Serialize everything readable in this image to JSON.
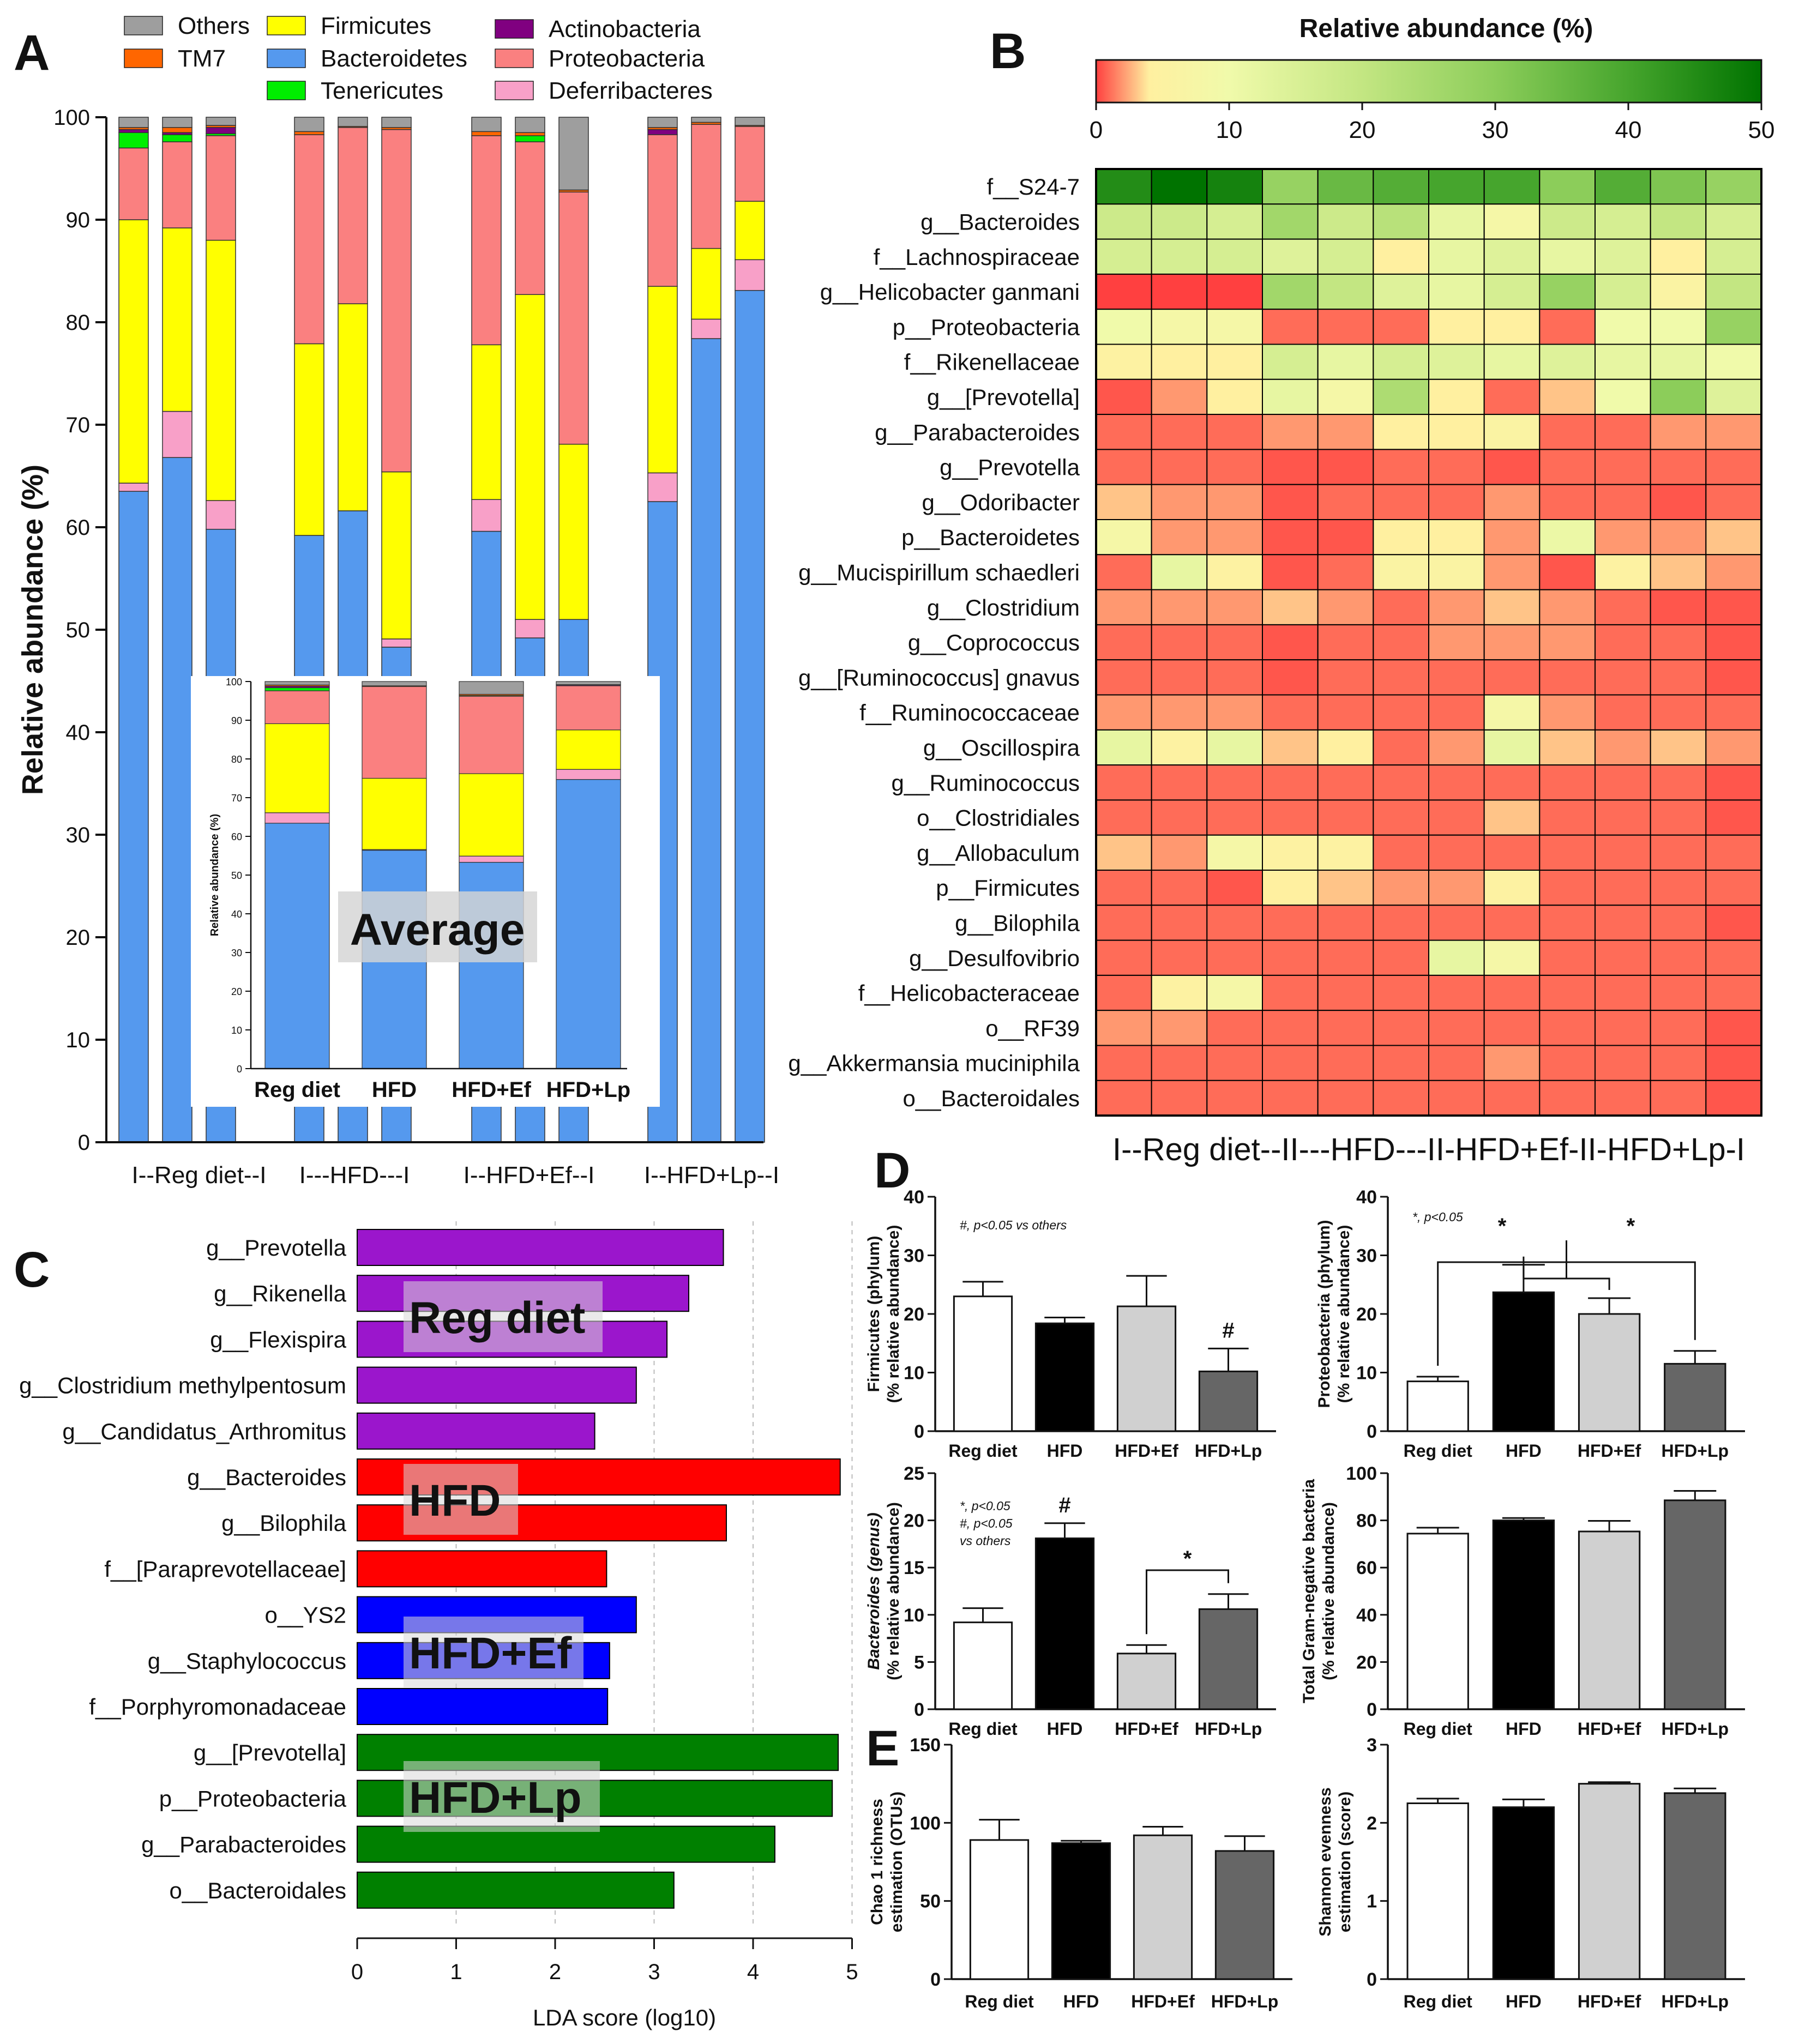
{
  "panels": {
    "A": "A",
    "B": "B",
    "C": "C",
    "D": "D",
    "E": "E"
  },
  "chart_data": [
    {
      "id": "A",
      "type": "bar",
      "stacked": true,
      "ylabel": "Relative abundance (%)",
      "ylim": [
        0,
        100
      ],
      "yticks": [
        "0",
        "10",
        "20",
        "30",
        "40",
        "50",
        "60",
        "70",
        "80",
        "90",
        "100"
      ],
      "legend": [
        {
          "name": "Others",
          "color": "#9e9e9e"
        },
        {
          "name": "Firmicutes",
          "color": "#ffff00"
        },
        {
          "name": "Actinobacteria",
          "color": "#800080"
        },
        {
          "name": "TM7",
          "color": "#ff6600"
        },
        {
          "name": "Bacteroidetes",
          "color": "#5599ee"
        },
        {
          "name": "Proteobacteria",
          "color": "#fa8080"
        },
        {
          "name": "Tenericutes",
          "color": "#00ee00"
        },
        {
          "name": "Deferribacteres",
          "color": "#f8a0c8"
        }
      ],
      "stack_order": [
        "Bacteroidetes",
        "Deferribacteres",
        "Firmicutes",
        "Proteobacteria",
        "Tenericutes",
        "Actinobacteria",
        "TM7",
        "Others"
      ],
      "group_labels": [
        "I--Reg diet--I",
        "I---HFD---I",
        "I--HFD+Ef--I",
        "I--HFD+Lp--I"
      ],
      "samples": [
        {
          "Bacteroidetes": 63.5,
          "Deferribacteres": 0.8,
          "Firmicutes": 25.7,
          "Proteobacteria": 7.0,
          "Tenericutes": 1.5,
          "Actinobacteria": 0.3,
          "TM7": 0.2,
          "Others": 1.0
        },
        {
          "Bacteroidetes": 66.8,
          "Deferribacteres": 4.5,
          "Firmicutes": 17.9,
          "Proteobacteria": 8.4,
          "Tenericutes": 0.7,
          "Actinobacteria": 0.2,
          "TM7": 0.5,
          "Others": 1.0
        },
        {
          "Bacteroidetes": 59.8,
          "Deferribacteres": 2.8,
          "Firmicutes": 25.4,
          "Proteobacteria": 10.2,
          "Tenericutes": 0.2,
          "Actinobacteria": 0.6,
          "TM7": 0.2,
          "Others": 0.8
        },
        {
          "Bacteroidetes": 59.2,
          "Deferribacteres": 0.0,
          "Firmicutes": 18.7,
          "Proteobacteria": 20.4,
          "Tenericutes": 0.0,
          "Actinobacteria": 0.0,
          "TM7": 0.3,
          "Others": 1.4
        },
        {
          "Bacteroidetes": 61.6,
          "Deferribacteres": 0.0,
          "Firmicutes": 20.2,
          "Proteobacteria": 17.2,
          "Tenericutes": 0.0,
          "Actinobacteria": 0.0,
          "TM7": 0.1,
          "Others": 0.9
        },
        {
          "Bacteroidetes": 48.3,
          "Deferribacteres": 0.8,
          "Firmicutes": 16.3,
          "Proteobacteria": 33.4,
          "Tenericutes": 0.0,
          "Actinobacteria": 0.0,
          "TM7": 0.2,
          "Others": 1.0
        },
        {
          "Bacteroidetes": 59.6,
          "Deferribacteres": 3.1,
          "Firmicutes": 15.1,
          "Proteobacteria": 20.4,
          "Tenericutes": 0.0,
          "Actinobacteria": 0.0,
          "TM7": 0.4,
          "Others": 1.4
        },
        {
          "Bacteroidetes": 49.2,
          "Deferribacteres": 1.8,
          "Firmicutes": 31.7,
          "Proteobacteria": 14.9,
          "Tenericutes": 0.6,
          "Actinobacteria": 0.0,
          "TM7": 0.3,
          "Others": 1.5
        },
        {
          "Bacteroidetes": 51.0,
          "Deferribacteres": 0.0,
          "Firmicutes": 17.1,
          "Proteobacteria": 24.6,
          "Tenericutes": 0.0,
          "Actinobacteria": 0.0,
          "TM7": 0.2,
          "Others": 7.1
        },
        {
          "Bacteroidetes": 62.5,
          "Deferribacteres": 2.8,
          "Firmicutes": 18.2,
          "Proteobacteria": 14.8,
          "Tenericutes": 0.0,
          "Actinobacteria": 0.5,
          "TM7": 0.2,
          "Others": 1.0
        },
        {
          "Bacteroidetes": 78.4,
          "Deferribacteres": 1.9,
          "Firmicutes": 6.9,
          "Proteobacteria": 12.1,
          "Tenericutes": 0.0,
          "Actinobacteria": 0.0,
          "TM7": 0.2,
          "Others": 0.5
        },
        {
          "Bacteroidetes": 83.1,
          "Deferribacteres": 3.0,
          "Firmicutes": 5.7,
          "Proteobacteria": 7.3,
          "Tenericutes": 0.0,
          "Actinobacteria": 0.0,
          "TM7": 0.1,
          "Others": 0.8
        }
      ],
      "inset": {
        "title": "Average",
        "ylabel": "Relative abundance (%)",
        "yticks": [
          "0",
          "10",
          "20",
          "30",
          "40",
          "50",
          "60",
          "70",
          "80",
          "90",
          "100"
        ],
        "categories": [
          "Reg diet",
          "HFD",
          "HFD+Ef",
          "HFD+Lp"
        ],
        "samples": [
          {
            "Bacteroidetes": 63.4,
            "Deferribacteres": 2.7,
            "Firmicutes": 23.0,
            "Proteobacteria": 8.5,
            "Tenericutes": 0.8,
            "Actinobacteria": 0.4,
            "TM7": 0.3,
            "Others": 0.9
          },
          {
            "Bacteroidetes": 56.4,
            "Deferribacteres": 0.2,
            "Firmicutes": 18.4,
            "Proteobacteria": 23.7,
            "Tenericutes": 0.0,
            "Actinobacteria": 0.0,
            "TM7": 0.2,
            "Others": 1.1
          },
          {
            "Bacteroidetes": 53.3,
            "Deferribacteres": 1.6,
            "Firmicutes": 21.3,
            "Proteobacteria": 20.0,
            "Tenericutes": 0.2,
            "Actinobacteria": 0.0,
            "TM7": 0.3,
            "Others": 3.3
          },
          {
            "Bacteroidetes": 74.7,
            "Deferribacteres": 2.6,
            "Firmicutes": 10.2,
            "Proteobacteria": 11.4,
            "Tenericutes": 0.0,
            "Actinobacteria": 0.2,
            "TM7": 0.1,
            "Others": 0.8
          }
        ]
      }
    },
    {
      "id": "B",
      "type": "heatmap",
      "title": "Relative abundance (%)",
      "colorbar_ticks": [
        "0",
        "10",
        "20",
        "30",
        "40",
        "50"
      ],
      "range": [
        0,
        50
      ],
      "xlabel": "I--Reg diet--II---HFD---II-HFD+Ef-II-HFD+Lp-I",
      "rows": [
        "f__S24-7",
        "g__Bacteroides",
        "f__Lachnospiraceae",
        "g__Helicobacter ganmani",
        "p__Proteobacteria",
        "f__Rikenellaceae",
        "g__[Prevotella]",
        "g__Parabacteroides",
        "g__Prevotella",
        "g__Odoribacter",
        "p__Bacteroidetes",
        "g__Mucispirillum schaedleri",
        "g__Clostridium",
        "g__Coprococcus",
        "g__[Ruminococcus] gnavus",
        "f__Ruminococcaceae",
        "g__Oscillospira",
        "g__Ruminococcus",
        "o__Clostridiales",
        "g__Allobaculum",
        "p__Firmicutes",
        "g__Bilophila",
        "g__Desulfovibrio",
        "f__Helicobacteraceae",
        "o__RF39",
        "g__Akkermansia muciniphila",
        "o__Bacteroidales"
      ],
      "values": [
        [
          45,
          50,
          47,
          28,
          35,
          38,
          40,
          40,
          30,
          38,
          32,
          28
        ],
        [
          18,
          18,
          16,
          26,
          18,
          22,
          12,
          8,
          18,
          16,
          20,
          16
        ],
        [
          16,
          16,
          16,
          14,
          16,
          4,
          12,
          14,
          12,
          14,
          4,
          16
        ],
        [
          0,
          0,
          0,
          26,
          20,
          14,
          12,
          16,
          28,
          16,
          6,
          20
        ],
        [
          10,
          8,
          8,
          1,
          1,
          1,
          4,
          4,
          1,
          10,
          10,
          28
        ],
        [
          5,
          4,
          4,
          16,
          12,
          16,
          14,
          12,
          14,
          12,
          12,
          10
        ],
        [
          0.5,
          2,
          4,
          12,
          8,
          24,
          4,
          1,
          3,
          10,
          30,
          14
        ],
        [
          1,
          1,
          1,
          2,
          2,
          4,
          4,
          6,
          1,
          1,
          2,
          2
        ],
        [
          1,
          1,
          1,
          0.5,
          0.5,
          1,
          1,
          0.5,
          1,
          1,
          1,
          1
        ],
        [
          3,
          2,
          2,
          0.5,
          1,
          1,
          1,
          2,
          1,
          1,
          0.5,
          1
        ],
        [
          8,
          2,
          2,
          0.5,
          0.5,
          4,
          4,
          2,
          11,
          2,
          2,
          3
        ],
        [
          1,
          12,
          5,
          0.5,
          1,
          6,
          6,
          2,
          0.5,
          5,
          3,
          2
        ],
        [
          2,
          2,
          2,
          3,
          2,
          1,
          2,
          3,
          2,
          1,
          0.5,
          0.5
        ],
        [
          1,
          1,
          1,
          0.5,
          1,
          1,
          2,
          2,
          2,
          1,
          1,
          0.5
        ],
        [
          1,
          1,
          1,
          0.5,
          1,
          1,
          1,
          1,
          1,
          1,
          1,
          0.5
        ],
        [
          2,
          2,
          2,
          1,
          1,
          1,
          1,
          8,
          2,
          1,
          1,
          1
        ],
        [
          12,
          5,
          12,
          3,
          4,
          1,
          2,
          12,
          3,
          2,
          3,
          2
        ],
        [
          1,
          1,
          1,
          1,
          1,
          1,
          1,
          1,
          1,
          1,
          1,
          0.5
        ],
        [
          1,
          1,
          1,
          1,
          1,
          1,
          1,
          3,
          1,
          1,
          1,
          0.5
        ],
        [
          3,
          2,
          8,
          5,
          5,
          1,
          1,
          1,
          1,
          1,
          1,
          1
        ],
        [
          1,
          1,
          0.5,
          4,
          3,
          2,
          2,
          5,
          1,
          1,
          1,
          1
        ],
        [
          1,
          1,
          1,
          1,
          1,
          1,
          1,
          1,
          1,
          1,
          1,
          0.5
        ],
        [
          1,
          1,
          1,
          1,
          1,
          1,
          12,
          8,
          1,
          1,
          1,
          1
        ],
        [
          1,
          5,
          8,
          1,
          1,
          1,
          1,
          1,
          1,
          1,
          1,
          1
        ],
        [
          2,
          2,
          1,
          1,
          1,
          1,
          1,
          1,
          1,
          1,
          1,
          0.5
        ],
        [
          1,
          1,
          1,
          1,
          1,
          1,
          1,
          2,
          1,
          1,
          1,
          0.5
        ],
        [
          1,
          1,
          1,
          1,
          1,
          1,
          1,
          1,
          1,
          1,
          1,
          0.5
        ]
      ]
    },
    {
      "id": "C",
      "type": "bar",
      "orientation": "horizontal",
      "xlabel": "LDA score (log10)",
      "xlim": [
        0,
        5
      ],
      "xticks": [
        "0",
        "1",
        "2",
        "3",
        "4",
        "5"
      ],
      "groups": [
        {
          "label": "Reg diet",
          "color": "#9b16cc",
          "items": [
            {
              "name": "g__Prevotella",
              "value": 3.7
            },
            {
              "name": "g__Rikenella",
              "value": 3.35
            },
            {
              "name": "g__Flexispira",
              "value": 3.13
            },
            {
              "name": "g__Clostridium methylpentosum",
              "value": 2.82
            },
            {
              "name": "g__Candidatus_Arthromitus",
              "value": 2.4
            }
          ]
        },
        {
          "label": "HFD",
          "color": "#ff0000",
          "items": [
            {
              "name": "g__Bacteroides",
              "value": 4.88
            },
            {
              "name": "g__Bilophila",
              "value": 3.73
            },
            {
              "name": "f__[Paraprevotellaceae]",
              "value": 2.52
            }
          ]
        },
        {
          "label": "HFD+Ef",
          "color": "#0000ff",
          "items": [
            {
              "name": "o__YS2",
              "value": 2.82
            },
            {
              "name": "g__Staphylococcus",
              "value": 2.55
            },
            {
              "name": "f__Porphyromonadaceae",
              "value": 2.53
            }
          ]
        },
        {
          "label": "HFD+Lp",
          "color": "#008000",
          "items": [
            {
              "name": "g__[Prevotella]",
              "value": 4.86
            },
            {
              "name": "p__Proteobacteria",
              "value": 4.8
            },
            {
              "name": "g__Parabacteroides",
              "value": 4.22
            },
            {
              "name": "o__Bacteroidales",
              "value": 3.2
            }
          ]
        }
      ]
    },
    {
      "id": "D1",
      "type": "bar",
      "ylabel": "Firmicutes (phylum)",
      "ylabel2": "(% relative abundance)",
      "ylim": [
        0,
        40
      ],
      "yticks": [
        "0",
        "10",
        "20",
        "30",
        "40"
      ],
      "categories": [
        "Reg diet",
        "HFD",
        "HFD+Ef",
        "HFD+Lp"
      ],
      "values": [
        23.0,
        18.4,
        21.3,
        10.2
      ],
      "errors": [
        2.5,
        1.0,
        5.2,
        3.9
      ],
      "annotations": [
        {
          "text": "#",
          "bar": 3
        }
      ],
      "note": [
        "#, p<0.05 vs others"
      ]
    },
    {
      "id": "D2",
      "type": "bar",
      "ylabel": "Proteobacteria (phylum)",
      "ylabel2": "(% relative abundance)",
      "ylim": [
        0,
        40
      ],
      "yticks": [
        "0",
        "10",
        "20",
        "30",
        "40"
      ],
      "categories": [
        "Reg diet",
        "HFD",
        "HFD+Ef",
        "HFD+Lp"
      ],
      "values": [
        8.5,
        23.7,
        20.0,
        11.5
      ],
      "errors": [
        0.8,
        4.7,
        2.7,
        2.2
      ],
      "stars": [
        "*",
        "*"
      ],
      "note": [
        "*, p<0.05"
      ]
    },
    {
      "id": "D3",
      "type": "bar",
      "ylabel": "Bacteroides (genus)",
      "ylabel2": "(% relative abundance)",
      "ylim": [
        0,
        25
      ],
      "yticks": [
        "0",
        "5",
        "10",
        "15",
        "20",
        "25"
      ],
      "categories": [
        "Reg diet",
        "HFD",
        "HFD+Ef",
        "HFD+Lp"
      ],
      "values": [
        9.2,
        18.1,
        5.9,
        10.6
      ],
      "errors": [
        1.5,
        1.6,
        0.9,
        1.6
      ],
      "annotations": [
        {
          "text": "#",
          "bar": 1
        }
      ],
      "stars": [
        "*"
      ],
      "note": [
        "*, p<0.05",
        "#, p<0.05",
        "vs others"
      ]
    },
    {
      "id": "D4",
      "type": "bar",
      "ylabel": "Total Gram-negative bacteria",
      "ylabel2": "(% relative abundance)",
      "ylim": [
        0,
        100
      ],
      "yticks": [
        "0",
        "20",
        "40",
        "60",
        "80",
        "100"
      ],
      "categories": [
        "Reg diet",
        "HFD",
        "HFD+Ef",
        "HFD+Lp"
      ],
      "values": [
        74.4,
        80.0,
        75.3,
        88.5
      ],
      "errors": [
        2.5,
        1.0,
        4.5,
        4.0
      ]
    },
    {
      "id": "E1",
      "type": "bar",
      "ylabel": "Chao 1 richness",
      "ylabel2": "estimation (OTUs)",
      "ylim": [
        0,
        150
      ],
      "yticks": [
        "0",
        "50",
        "100",
        "150"
      ],
      "categories": [
        "Reg diet",
        "HFD",
        "HFD+Ef",
        "HFD+Lp"
      ],
      "values": [
        89,
        87,
        92,
        82
      ],
      "errors": [
        13,
        1.5,
        5.5,
        9.5
      ]
    },
    {
      "id": "E2",
      "type": "bar",
      "ylabel": "Shannon evenness",
      "ylabel2": "estimation (score)",
      "ylim": [
        0,
        3
      ],
      "yticks": [
        "0",
        "1",
        "2",
        "3"
      ],
      "categories": [
        "Reg diet",
        "HFD",
        "HFD+Ef",
        "HFD+Lp"
      ],
      "values": [
        2.25,
        2.2,
        2.5,
        2.38
      ],
      "errors": [
        0.06,
        0.1,
        0.02,
        0.06
      ]
    }
  ]
}
